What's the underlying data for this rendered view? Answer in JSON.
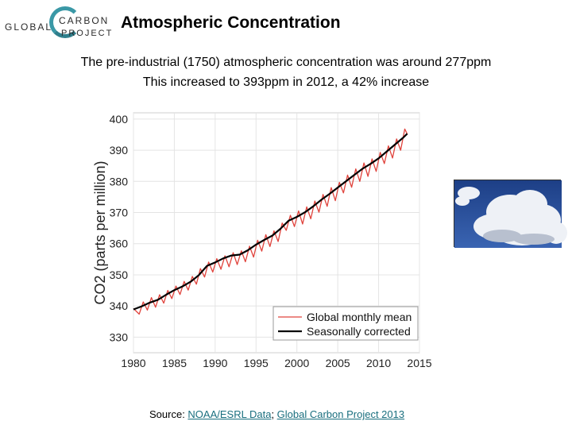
{
  "logo": {
    "line1": "GLOBAL",
    "line2": "CARBON",
    "line3": "PROJECT"
  },
  "title": "Atmospheric Concentration",
  "subtitle_line1": "The pre-industrial (1750) atmospheric concentration was around 277ppm",
  "subtitle_line2": "This increased to 393ppm in 2012, a 42% increase",
  "source": {
    "prefix": "Source: ",
    "link1": "NOAA/ESRL Data",
    "separator": "; ",
    "link2": "Global Carbon Project 2013"
  },
  "colors": {
    "monthly": "#e0433c",
    "corrected": "#000000"
  },
  "chart_data": {
    "type": "line",
    "title": "",
    "xlabel": "",
    "ylabel": "CO2 (parts per million)",
    "xlim": [
      1980,
      2015
    ],
    "ylim": [
      325,
      402
    ],
    "xticks": [
      1980,
      1985,
      1990,
      1995,
      2000,
      2005,
      2010,
      2015
    ],
    "yticks": [
      330,
      340,
      350,
      360,
      370,
      380,
      390,
      400
    ],
    "grid": true,
    "legend": "bottom-right",
    "series": [
      {
        "name": "Global monthly mean",
        "color": "#e0433c",
        "x": [
          1980.0,
          1980.7,
          1981.2,
          1981.7,
          1982.2,
          1982.7,
          1983.2,
          1983.7,
          1984.2,
          1984.7,
          1985.2,
          1985.7,
          1986.2,
          1986.7,
          1987.2,
          1987.7,
          1988.2,
          1988.7,
          1989.2,
          1989.7,
          1990.2,
          1990.7,
          1991.2,
          1991.7,
          1992.2,
          1992.7,
          1993.2,
          1993.7,
          1994.2,
          1994.7,
          1995.2,
          1995.7,
          1996.2,
          1996.7,
          1997.2,
          1997.7,
          1998.2,
          1998.7,
          1999.2,
          1999.7,
          2000.2,
          2000.7,
          2001.2,
          2001.7,
          2002.2,
          2002.7,
          2003.2,
          2003.7,
          2004.2,
          2004.7,
          2005.2,
          2005.7,
          2006.2,
          2006.7,
          2007.2,
          2007.7,
          2008.2,
          2008.7,
          2009.2,
          2009.7,
          2010.2,
          2010.7,
          2011.2,
          2011.7,
          2012.2,
          2012.7,
          2013.2,
          2013.5
        ],
        "y": [
          339.2,
          337.4,
          341.3,
          338.7,
          342.7,
          339.6,
          343.6,
          340.9,
          345.0,
          342.4,
          346.4,
          343.7,
          347.9,
          345.1,
          349.5,
          347.0,
          352.0,
          349.3,
          354.1,
          350.9,
          355.2,
          351.8,
          356.1,
          352.6,
          357.1,
          353.3,
          357.7,
          354.2,
          359.2,
          355.7,
          361.1,
          357.6,
          362.9,
          359.1,
          364.1,
          360.7,
          366.6,
          364.3,
          369.1,
          365.5,
          370.5,
          366.3,
          371.8,
          368.0,
          373.7,
          370.1,
          375.8,
          372.0,
          378.0,
          373.8,
          379.7,
          376.3,
          382.0,
          378.1,
          384.0,
          380.0,
          385.9,
          381.6,
          387.2,
          383.2,
          389.3,
          385.7,
          391.4,
          387.5,
          393.6,
          390.0,
          396.8,
          395.2
        ]
      },
      {
        "name": "Seasonally corrected",
        "color": "#000000",
        "x": [
          1980,
          1981,
          1982,
          1983,
          1984,
          1985,
          1986,
          1987,
          1988,
          1989,
          1990,
          1991,
          1992,
          1993,
          1994,
          1995,
          1996,
          1997,
          1998,
          1999,
          2000,
          2001,
          2002,
          2003,
          2004,
          2005,
          2006,
          2007,
          2008,
          2009,
          2010,
          2011,
          2012,
          2013,
          2013.5
        ],
        "y": [
          338.9,
          339.9,
          341.1,
          342.0,
          343.6,
          345.1,
          346.3,
          347.8,
          349.9,
          352.9,
          354.0,
          355.3,
          356.2,
          356.5,
          357.9,
          359.7,
          361.2,
          362.6,
          364.8,
          367.4,
          368.6,
          370.1,
          372.0,
          374.1,
          376.0,
          378.0,
          380.0,
          382.0,
          384.0,
          385.6,
          387.4,
          389.6,
          391.8,
          394.0,
          395.3
        ]
      }
    ]
  }
}
